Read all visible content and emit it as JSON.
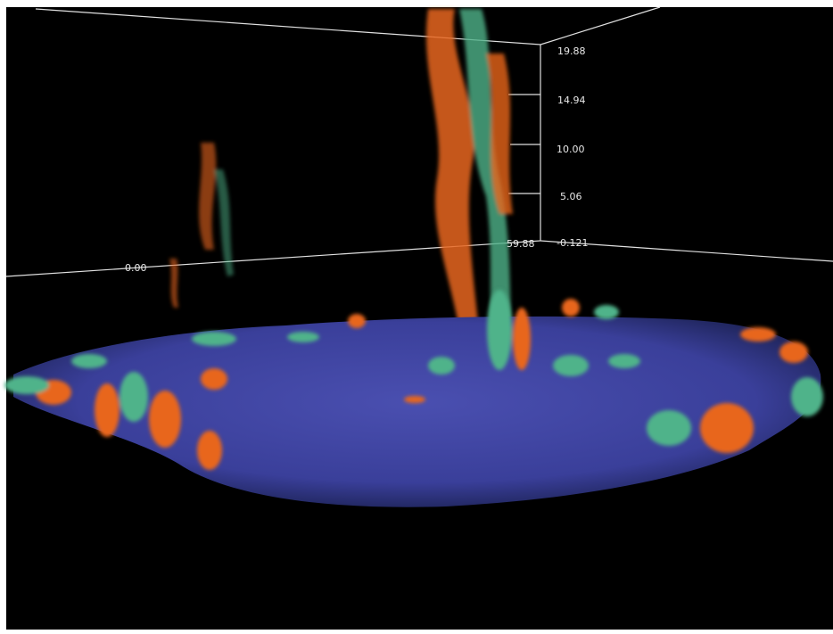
{
  "axes": {
    "z_ticks": [
      "19.88",
      "14.94",
      "10.00",
      "5.06",
      "-0.121"
    ],
    "x_label": "59.88",
    "y_label": "0.00"
  }
}
